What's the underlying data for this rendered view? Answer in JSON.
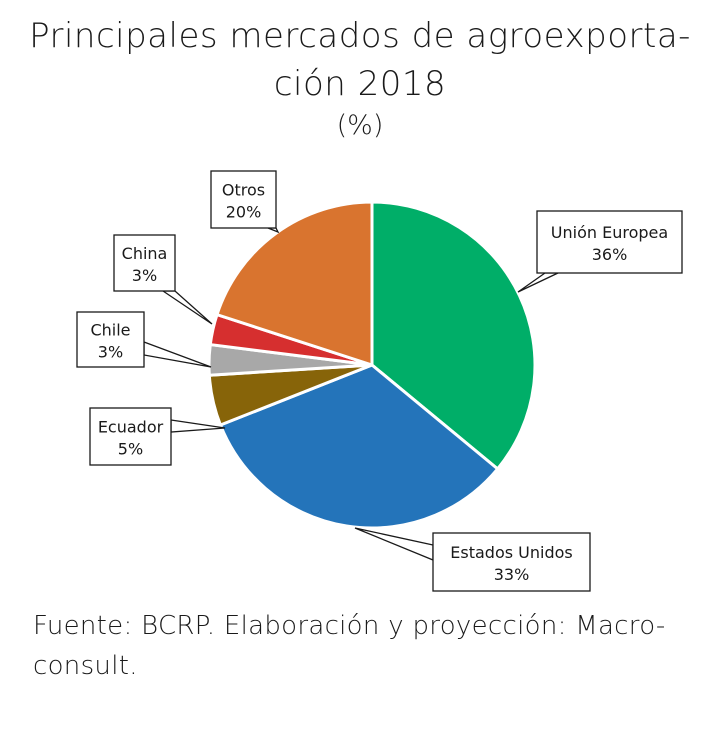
{
  "title": {
    "line1": "Principales mercados de agroexporta-",
    "line2": "ción 2018",
    "unit": "(%)"
  },
  "source": "Fuente: BCRP. Elaboración y proyección: Macro-consult.",
  "source_lines": [
    "Fuente: BCRP. Elaboración y proyección: Macro-",
    "consult."
  ],
  "chart_data": {
    "type": "pie",
    "title": "Principales mercados de agroexportación 2018",
    "subtitle": "(%)",
    "categories": [
      "Unión Europea",
      "Estados Unidos",
      "Ecuador",
      "Chile",
      "China",
      "Otros"
    ],
    "values": [
      36,
      33,
      5,
      3,
      3,
      20
    ],
    "colors": [
      "#00ae68",
      "#2474ba",
      "#876409",
      "#a8a8a8",
      "#d62f2f",
      "#d9742f"
    ],
    "labels": [
      {
        "name": "Unión Europea",
        "value": "36%"
      },
      {
        "name": "Estados Unidos",
        "value": "33%"
      },
      {
        "name": "Ecuador",
        "value": "5%"
      },
      {
        "name": "Chile",
        "value": "3%"
      },
      {
        "name": "China",
        "value": "3%"
      },
      {
        "name": "Otros",
        "value": "20%"
      }
    ],
    "start_angle": "12 o'clock, clockwise",
    "legend": "callout labels",
    "source": "Fuente: BCRP. Elaboración y proyección: Macro-consult."
  }
}
